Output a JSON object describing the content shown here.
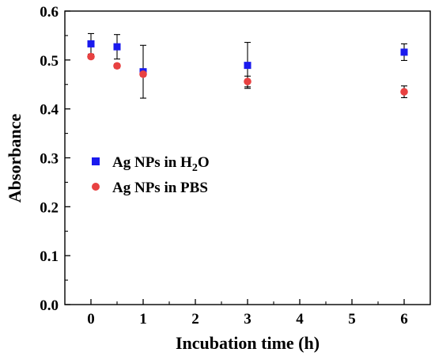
{
  "chart_data": {
    "type": "scatter",
    "xlabel": "Incubation time (h)",
    "ylabel": "Absorbance",
    "xlim": [
      -0.5,
      6.5
    ],
    "ylim": [
      0.0,
      0.6
    ],
    "xticks": [
      "0",
      "1",
      "2",
      "3",
      "4",
      "5",
      "6"
    ],
    "yticks": [
      "0.0",
      "0.1",
      "0.2",
      "0.3",
      "0.4",
      "0.5",
      "0.6"
    ],
    "grid": false,
    "legend_position": "center-left",
    "series": [
      {
        "name_prefix": "Ag NPs in H",
        "name_sub": "2",
        "name_suffix": "O",
        "marker": "square",
        "color": "#1a1aee",
        "x": [
          0,
          0.5,
          1,
          3,
          6
        ],
        "y": [
          0.533,
          0.527,
          0.476,
          0.489,
          0.516
        ],
        "err": [
          0.021,
          0.025,
          0.054,
          0.047,
          0.017
        ]
      },
      {
        "name_prefix": "Ag NPs in PBS",
        "name_sub": "",
        "name_suffix": "",
        "marker": "circle",
        "color": "#e84141",
        "x": [
          0,
          0.5,
          1,
          3,
          6
        ],
        "y": [
          0.507,
          0.488,
          0.471,
          0.456,
          0.435
        ],
        "err": [
          0.004,
          0.004,
          0.004,
          0.011,
          0.012
        ]
      }
    ]
  }
}
